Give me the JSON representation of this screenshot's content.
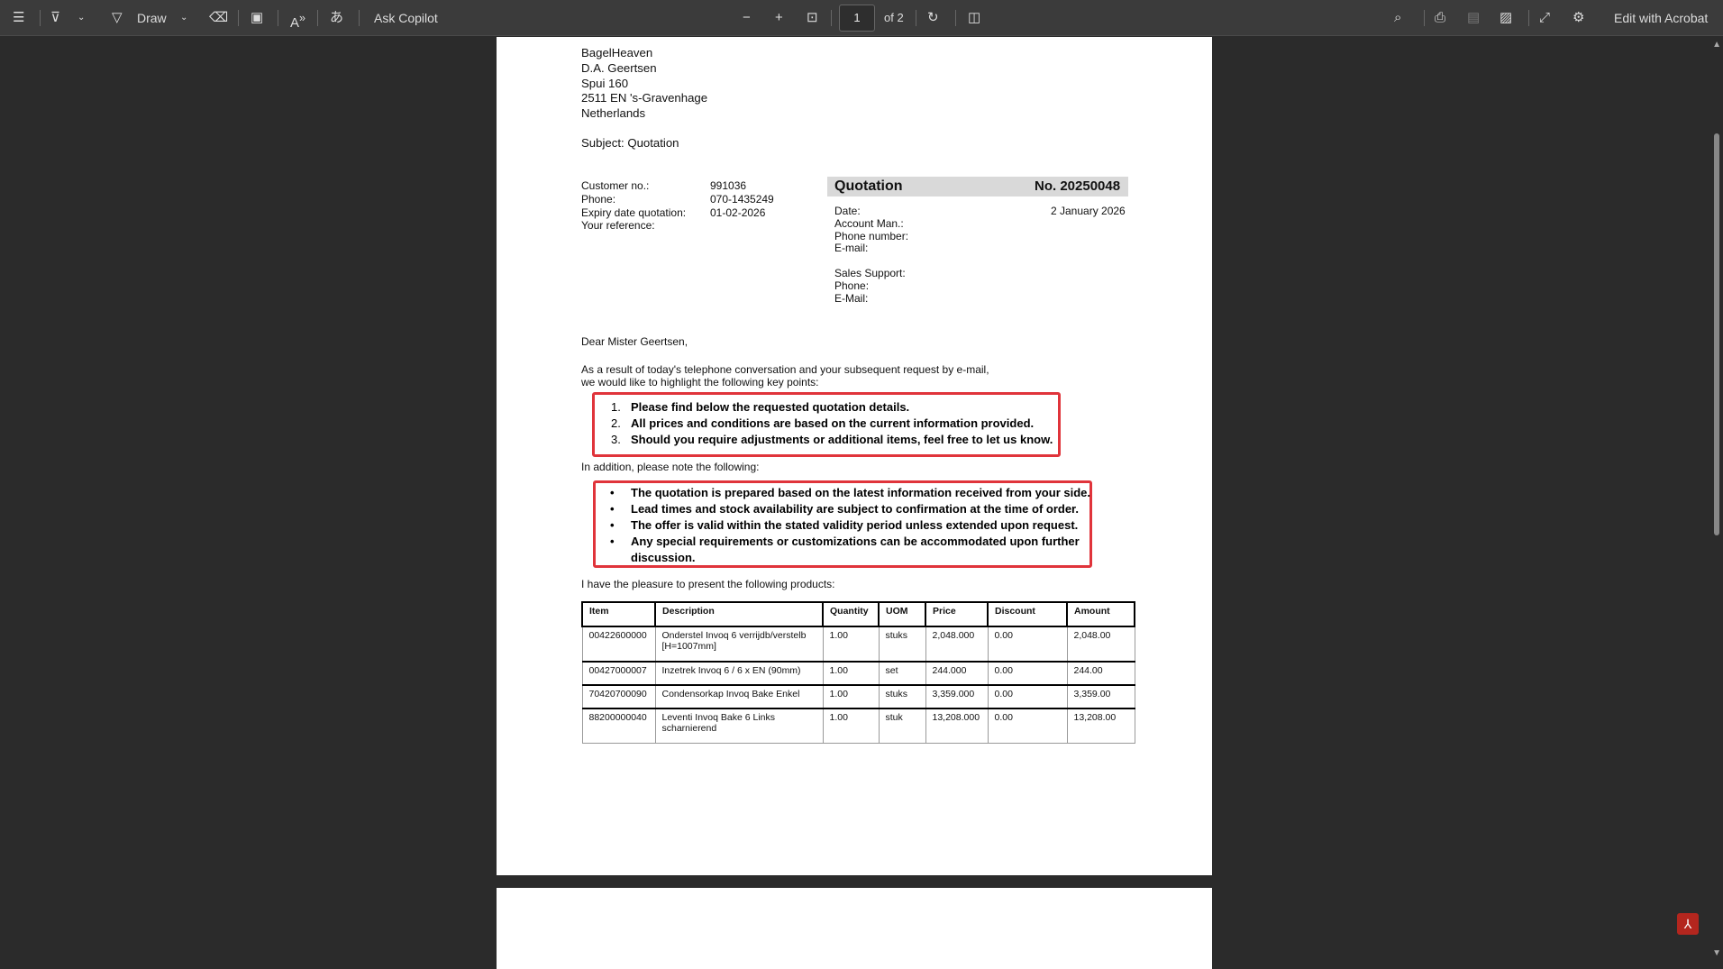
{
  "toolbar": {
    "draw": "Draw",
    "ask_copilot": "Ask Copilot",
    "page": "1",
    "of": "of 2",
    "edit": "Edit with Acrobat"
  },
  "letter": {
    "address": [
      "BagelHeaven",
      "D.A.  Geertsen",
      "Spui 160",
      "2511 EN  's-Gravenhage",
      "Netherlands"
    ],
    "subject": "Subject: Quotation",
    "customer": [
      {
        "label": "Customer no.:",
        "value": "991036"
      },
      {
        "label": "Phone:",
        "value": "070-1435249"
      },
      {
        "label": "Expiry date quotation:",
        "value": "01-02-2026"
      },
      {
        "label": "Your reference:",
        "value": ""
      }
    ],
    "quotation_title": "Quotation",
    "quotation_no": "No. 20250048",
    "info": [
      "Date:",
      "Account Man.:",
      "Phone number:",
      "E-mail:"
    ],
    "date": "2 January 2026",
    "support": [
      "Sales Support:",
      "Phone:",
      "E-Mail:"
    ],
    "greeting": "Dear Mister  Geertsen,",
    "intro": [
      "As a result of today's telephone conversation and your subsequent request by e-mail,",
      "we would like to highlight the following key points:"
    ],
    "points": [
      "Please find below the requested quotation details.",
      "All prices and conditions are based on the current information provided.",
      "Should you require adjustments or additional items, feel free to let us know."
    ],
    "addition": "In addition, please note the following:",
    "bullets": [
      "The quotation is prepared based on the latest information received from your side.",
      "Lead times and stock availability are subject to confirmation at the time of order.",
      "The offer is valid within the stated validity period unless extended upon request.",
      "Any special requirements or customizations can be accommodated upon further",
      "discussion."
    ],
    "products_intro": "I have the pleasure to present the following products:",
    "table": {
      "headers": [
        "Item",
        "Description",
        "Quantity",
        "UOM",
        "Price",
        "Discount",
        "Amount"
      ],
      "rows": [
        [
          "00422600000",
          "Onderstel Invoq 6 verrijdb/verstelb [H=1007mm]",
          "1.00",
          "stuks",
          "2,048.000",
          "0.00",
          "2,048.00"
        ],
        [
          "00427000007",
          "Inzetrek Invoq 6 / 6 x EN (90mm)",
          "1.00",
          "set",
          "244.000",
          "0.00",
          "244.00"
        ],
        [
          "70420700090",
          "Condensorkap Invoq Bake Enkel",
          "1.00",
          "stuks",
          "3,359.000",
          "0.00",
          "3,359.00"
        ],
        [
          "88200000040",
          "Leventi Invoq Bake 6 Links scharnierend",
          "1.00",
          "stuk",
          "13,208.000",
          "0.00",
          "13,208.00"
        ]
      ]
    }
  }
}
